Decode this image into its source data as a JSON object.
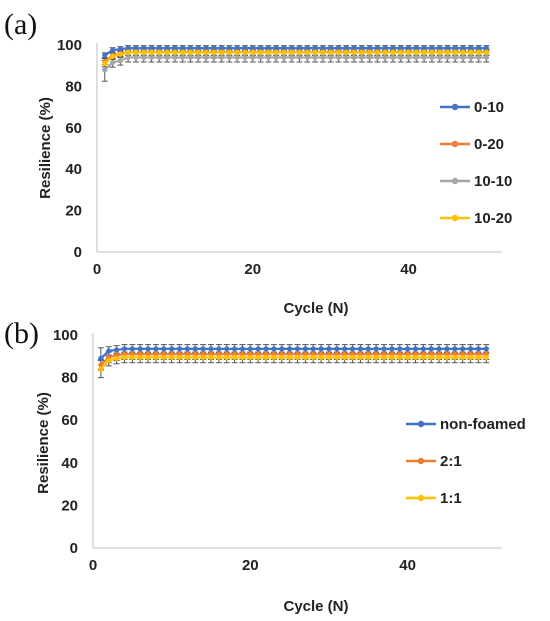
{
  "chart_data": [
    {
      "type": "line",
      "panel_label": "(a)",
      "xlabel": "Cycle (N)",
      "ylabel": "Resilience (%)",
      "xlim": [
        0,
        52
      ],
      "ylim": [
        0,
        100
      ],
      "xticks": [
        0,
        20,
        40
      ],
      "yticks": [
        0,
        20,
        40,
        60,
        80,
        100
      ],
      "grid": false,
      "legend_position": "right",
      "x": [
        1,
        2,
        3,
        4,
        5,
        6,
        7,
        8,
        9,
        10,
        11,
        12,
        13,
        14,
        15,
        16,
        17,
        18,
        19,
        20,
        21,
        22,
        23,
        24,
        25,
        26,
        27,
        28,
        29,
        30,
        31,
        32,
        33,
        34,
        35,
        36,
        37,
        38,
        39,
        40,
        41,
        42,
        43,
        44,
        45,
        46,
        47,
        48,
        49,
        50
      ],
      "series": [
        {
          "name": "0-10",
          "color": "#4472C4",
          "start": [
            95.0,
            97.5,
            98.0
          ],
          "plateau": 98.5,
          "error": 1.2
        },
        {
          "name": "0-20",
          "color": "#ED7D31",
          "start": [
            92.0,
            95.0,
            95.8
          ],
          "plateau": 96.5,
          "error": 1.5
        },
        {
          "name": "10-10",
          "color": "#A5A5A5",
          "start": [
            88.0,
            91.5,
            92.5
          ],
          "plateau": 94.0,
          "error": 2.2,
          "first_error": 5.5
        },
        {
          "name": "10-20",
          "color": "#FFC000",
          "start": [
            91.0,
            94.5,
            95.5
          ],
          "plateau": 96.5,
          "error": 1.5
        }
      ]
    },
    {
      "type": "line",
      "panel_label": "(b)",
      "xlabel": "Cycle (N)",
      "ylabel": "Resilience (%)",
      "xlim": [
        0,
        52
      ],
      "ylim": [
        0,
        100
      ],
      "xticks": [
        0,
        20,
        40
      ],
      "yticks": [
        0,
        20,
        40,
        60,
        80,
        100
      ],
      "grid": false,
      "legend_position": "right",
      "x": [
        1,
        2,
        3,
        4,
        5,
        6,
        7,
        8,
        9,
        10,
        11,
        12,
        13,
        14,
        15,
        16,
        17,
        18,
        19,
        20,
        21,
        22,
        23,
        24,
        25,
        26,
        27,
        28,
        29,
        30,
        31,
        32,
        33,
        34,
        35,
        36,
        37,
        38,
        39,
        40,
        41,
        42,
        43,
        44,
        45,
        46,
        47,
        48,
        49,
        50
      ],
      "series": [
        {
          "name": "non-foamed",
          "color": "#4472C4",
          "start": [
            89.0,
            92.5,
            93.0
          ],
          "plateau": 93.5,
          "error": 2.0,
          "first_error": 5.0
        },
        {
          "name": "2:1",
          "color": "#ED7D31",
          "start": [
            86.0,
            89.5,
            90.5
          ],
          "plateau": 91.0,
          "error": 2.5
        },
        {
          "name": "1:1",
          "color": "#FFC000",
          "start": [
            84.0,
            88.0,
            89.0
          ],
          "plateau": 89.5,
          "error": 2.5,
          "first_error": 4.0
        }
      ]
    }
  ]
}
